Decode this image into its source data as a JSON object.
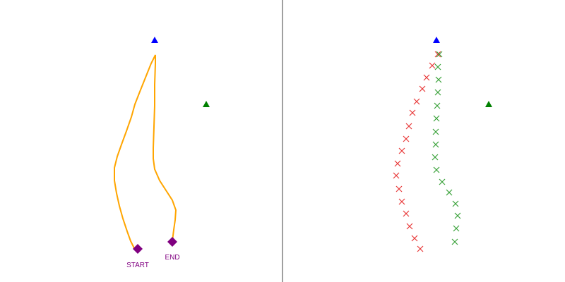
{
  "colors": {
    "background": "#ffffff",
    "divider": "#808080",
    "path": "#ffa500",
    "marker_blue": "#0000ff",
    "marker_green": "#008000",
    "endpoint": "#800080",
    "cross_red": "#e83a3a",
    "cross_green": "#3aa23a"
  },
  "left_panel": {
    "start_label": "START",
    "end_label": "END",
    "icons": {
      "blue": "triangle-icon",
      "green": "triangle-icon",
      "endpoints": "diamond-icon"
    }
  },
  "right_panel": {
    "icons": {
      "blue": "triangle-icon",
      "green": "triangle-icon",
      "crosses": "cross-icon"
    }
  }
}
